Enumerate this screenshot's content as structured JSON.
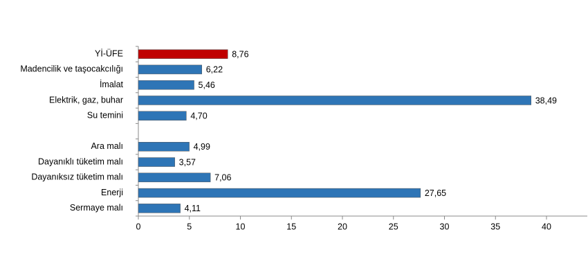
{
  "chart_data": {
    "type": "bar",
    "orientation": "horizontal",
    "categories": [
      "Yİ-ÜFE",
      "Madencilik ve taşocakcılığı",
      "İmalat",
      "Elektrik, gaz, buhar",
      "Su temini",
      null,
      "Ara malı",
      "Dayanıklı tüketim malı",
      "Dayanıksız tüketim malı",
      "Enerji",
      "Sermaye malı"
    ],
    "values": [
      8.76,
      6.22,
      5.46,
      38.49,
      4.7,
      null,
      4.99,
      3.57,
      7.06,
      27.65,
      4.11
    ],
    "value_labels": [
      "8,76",
      "6,22",
      "5,46",
      "38,49",
      "4,70",
      null,
      "4,99",
      "3,57",
      "7,06",
      "27,65",
      "4,11"
    ],
    "colors": [
      "#c00000",
      "#2e75b6",
      "#2e75b6",
      "#2e75b6",
      "#2e75b6",
      null,
      "#2e75b6",
      "#2e75b6",
      "#2e75b6",
      "#2e75b6",
      "#2e75b6"
    ],
    "xlim": [
      0,
      44
    ],
    "xticks": [
      0,
      5,
      10,
      15,
      20,
      25,
      30,
      35,
      40
    ]
  }
}
